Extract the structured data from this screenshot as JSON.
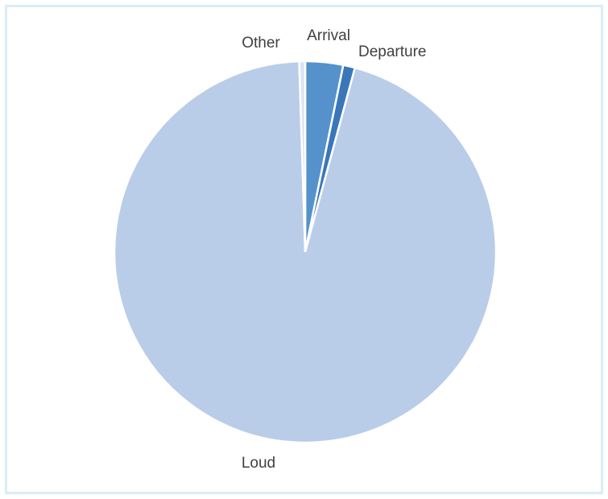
{
  "chart_data": {
    "type": "pie",
    "title": "",
    "categories": [
      "Arrival",
      "Departure",
      "Loud",
      "Other"
    ],
    "values": [
      3.2,
      1.0,
      95.3,
      0.5
    ],
    "colors": [
      "#5592cb",
      "#3a77b8",
      "#b9cde9",
      "#dbe5f3"
    ],
    "legend": "none",
    "start_angle_deg": 0,
    "direction": "clockwise"
  }
}
